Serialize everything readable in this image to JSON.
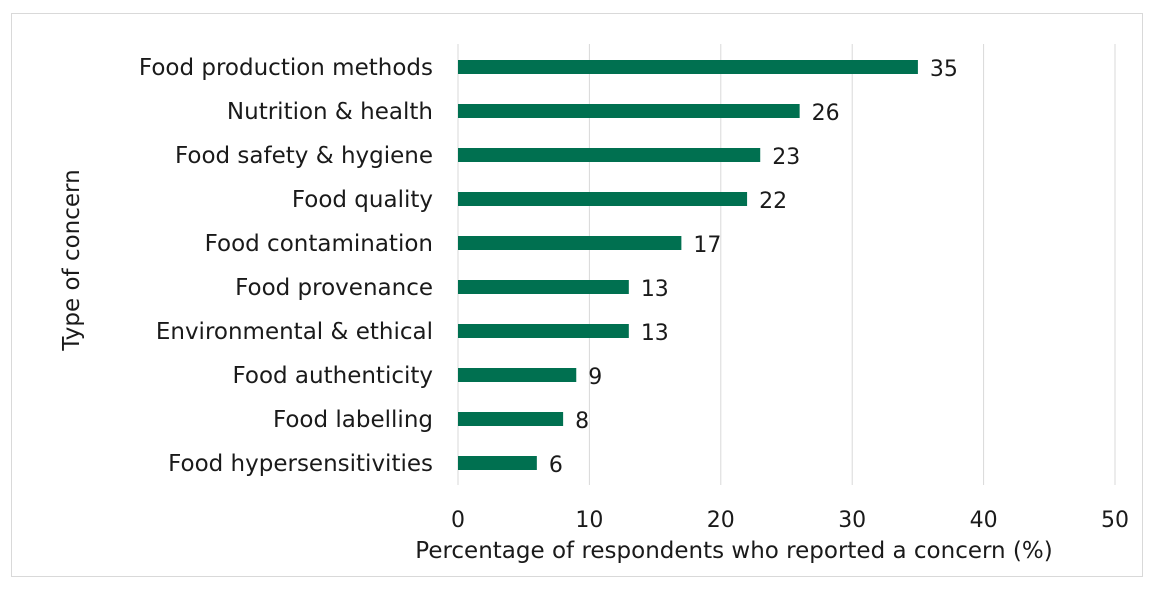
{
  "chart_data": {
    "type": "bar",
    "orientation": "horizontal",
    "title": "",
    "xlabel": "Percentage of respondents who reported a concern (%)",
    "ylabel": "Type of concern",
    "categories": [
      "Food production methods",
      "Nutrition & health",
      "Food safety & hygiene",
      "Food quality",
      "Food contamination",
      "Food provenance",
      "Environmental & ethical",
      "Food authenticity",
      "Food labelling",
      "Food hypersensitivities"
    ],
    "values": [
      35,
      26,
      23,
      22,
      17,
      13,
      13,
      9,
      8,
      6
    ],
    "xlim": [
      0,
      50
    ],
    "xticks": [
      0,
      10,
      20,
      30,
      40,
      50
    ],
    "grid": "vertical",
    "legend": "none",
    "bar_color": "#007050",
    "grid_color": "#d9d9d9"
  }
}
